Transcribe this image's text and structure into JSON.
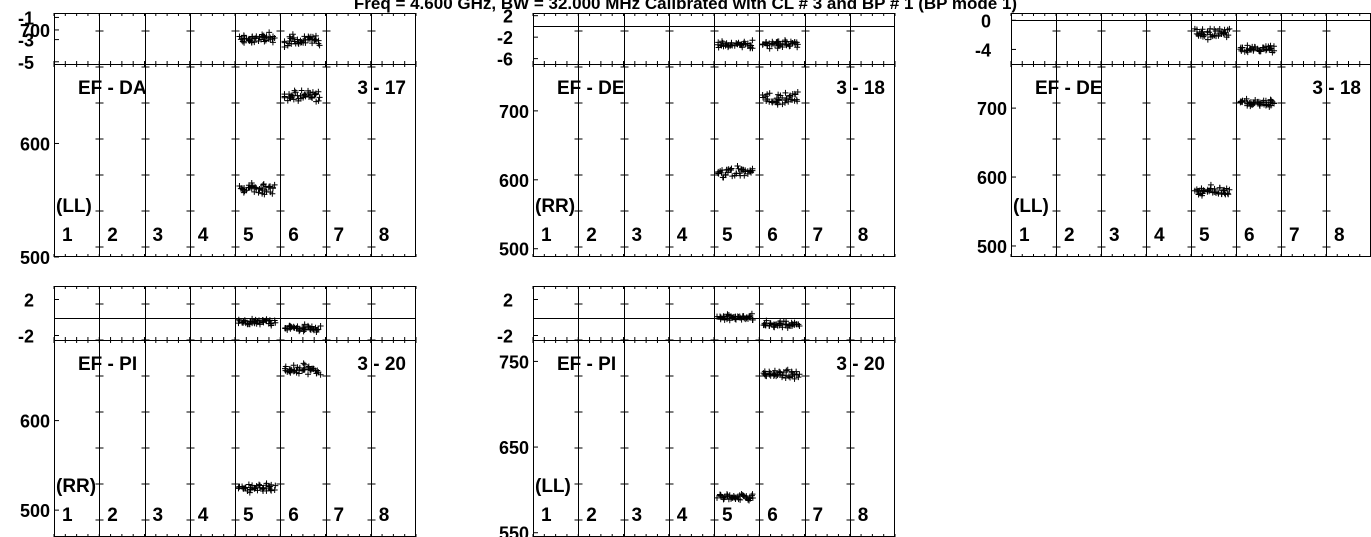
{
  "header": {
    "title": "Freq = 4.600 GHz, BW = 32.000 MHz  Calibrated with CL # 3 and BP # 1 (BP mode 1)"
  },
  "colors": {
    "axis": "#000000",
    "marker": "#000000",
    "background": "#ffffff"
  },
  "chart_data": [
    {
      "type": "scatter",
      "baseline": "EF - DA",
      "polarization": "(LL)",
      "label": "3 - 17",
      "antennas": [
        "1",
        "2",
        "3",
        "4",
        "5",
        "6",
        "7",
        "8"
      ],
      "amplitude": {
        "ylim": [
          500,
          670
        ],
        "ticks": [
          500,
          600,
          700
        ]
      },
      "phase": {
        "ylim": [
          -5.2,
          -0.6
        ],
        "ticks": [
          -5,
          -3,
          -1
        ],
        "hline": null
      },
      "segments": [
        {
          "antenna": "5",
          "amp_mean": 560,
          "amp_spread": 5,
          "phase_mean": -2.9,
          "phase_spread": 0.5
        },
        {
          "antenna": "6",
          "amp_mean": 642,
          "amp_spread": 5,
          "phase_mean": -3.1,
          "phase_spread": 0.5
        }
      ]
    },
    {
      "type": "scatter",
      "baseline": "EF - DE",
      "polarization": "(RR)",
      "label": "3 - 18",
      "antennas": [
        "1",
        "2",
        "3",
        "4",
        "5",
        "6",
        "7",
        "8"
      ],
      "amplitude": {
        "ylim": [
          488,
          768
        ],
        "ticks": [
          500,
          600,
          700
        ]
      },
      "phase": {
        "ylim": [
          -7,
          2.5
        ],
        "ticks": [
          -6,
          -2,
          2
        ],
        "hline": 0
      },
      "segments": [
        {
          "antenna": "5",
          "amp_mean": 612,
          "amp_spread": 8,
          "phase_mean": -3.4,
          "phase_spread": 0.8
        },
        {
          "antenna": "6",
          "amp_mean": 718,
          "amp_spread": 10,
          "phase_mean": -3.3,
          "phase_spread": 0.8
        }
      ]
    },
    {
      "type": "scatter",
      "baseline": "EF - DE",
      "polarization": "(LL)",
      "label": "3 - 18",
      "antennas": [
        "1",
        "2",
        "3",
        "4",
        "5",
        "6",
        "7",
        "8"
      ],
      "amplitude": {
        "ylim": [
          484,
          764
        ],
        "ticks": [
          500,
          600,
          700
        ]
      },
      "phase": {
        "ylim": [
          -6,
          1
        ],
        "ticks": [
          -4,
          0
        ],
        "hline": 0
      },
      "segments": [
        {
          "antenna": "5",
          "amp_mean": 580,
          "amp_spread": 7,
          "phase_mean": -1.8,
          "phase_spread": 0.7
        },
        {
          "antenna": "6",
          "amp_mean": 708,
          "amp_spread": 7,
          "phase_mean": -4.0,
          "phase_spread": 0.5
        }
      ]
    },
    {
      "type": "scatter",
      "baseline": "EF - PI",
      "polarization": "(RR)",
      "label": "3 - 20",
      "antennas": [
        "1",
        "2",
        "3",
        "4",
        "5",
        "6",
        "7",
        "8"
      ],
      "amplitude": {
        "ylim": [
          470,
          690
        ],
        "ticks": [
          500,
          600
        ]
      },
      "phase": {
        "ylim": [
          -2.5,
          3.5
        ],
        "ticks": [
          -2,
          2
        ],
        "hline": 0
      },
      "segments": [
        {
          "antenna": "5",
          "amp_mean": 524,
          "amp_spread": 5,
          "phase_mean": -0.5,
          "phase_spread": 0.4
        },
        {
          "antenna": "6",
          "amp_mean": 656,
          "amp_spread": 6,
          "phase_mean": -1.2,
          "phase_spread": 0.4
        }
      ]
    },
    {
      "type": "scatter",
      "baseline": "EF - PI",
      "polarization": "(LL)",
      "label": "3 - 20",
      "antennas": [
        "1",
        "2",
        "3",
        "4",
        "5",
        "6",
        "7",
        "8"
      ],
      "amplitude": {
        "ylim": [
          545,
          775
        ],
        "ticks": [
          550,
          650,
          750
        ]
      },
      "phase": {
        "ylim": [
          -2.5,
          3.5
        ],
        "ticks": [
          -2,
          2
        ],
        "hline": 0
      },
      "segments": [
        {
          "antenna": "5",
          "amp_mean": 592,
          "amp_spread": 4,
          "phase_mean": 0,
          "phase_spread": 0.4
        },
        {
          "antenna": "6",
          "amp_mean": 735,
          "amp_spread": 5,
          "phase_mean": -0.8,
          "phase_spread": 0.4
        }
      ]
    }
  ]
}
